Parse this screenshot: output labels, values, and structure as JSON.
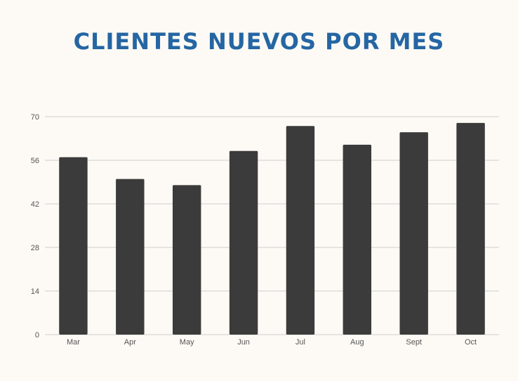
{
  "title": "CLIENTES NUEVOS POR MES",
  "colors": {
    "title": "#2566a3",
    "bar": "#3b3b3b",
    "grid": "#cfcfcf",
    "background": "#fdfaf5"
  },
  "chart_data": {
    "type": "bar",
    "title": "CLIENTES NUEVOS POR MES",
    "xlabel": "",
    "ylabel": "",
    "categories": [
      "Mar",
      "Apr",
      "May",
      "Jun",
      "Jul",
      "Aug",
      "Sept",
      "Oct"
    ],
    "values": [
      57,
      50,
      48,
      59,
      67,
      61,
      65,
      68
    ],
    "ylim": [
      0,
      70
    ],
    "yticks": [
      0,
      14,
      28,
      42,
      56,
      70
    ],
    "grid": true,
    "legend": "none"
  }
}
